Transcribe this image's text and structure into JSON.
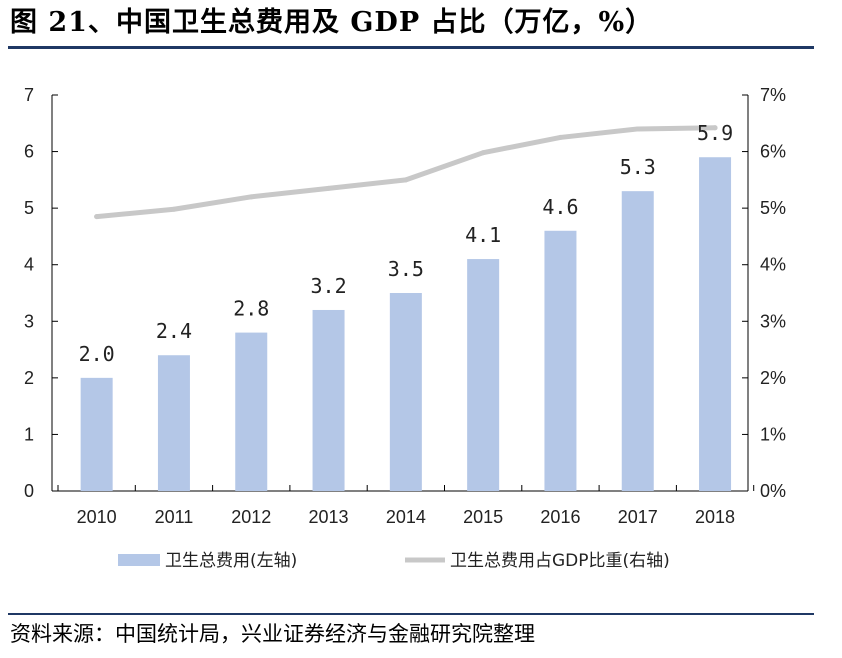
{
  "title": "图 21、中国卫生总费用及 GDP 占比（万亿，%）",
  "source": "资料来源：中国统计局，兴业证券经济与金融研究院整理",
  "colors": {
    "bar": "#b4c7e7",
    "line": "#c8c8c8",
    "rule": "#1f3864"
  },
  "chart_data": {
    "type": "bar",
    "categories": [
      "2010",
      "2011",
      "2012",
      "2013",
      "2014",
      "2015",
      "2016",
      "2017",
      "2018"
    ],
    "series": [
      {
        "name": "卫生总费用(左轴)",
        "type": "bar",
        "axis": "left",
        "values": [
          2.0,
          2.4,
          2.8,
          3.2,
          3.5,
          4.1,
          4.6,
          5.3,
          5.9
        ],
        "labels": [
          "2.0",
          "2.4",
          "2.8",
          "3.2",
          "3.5",
          "4.1",
          "4.6",
          "5.3",
          "5.9"
        ]
      },
      {
        "name": "卫生总费用占GDP比重(右轴)",
        "type": "line",
        "axis": "right",
        "values": [
          4.85,
          4.98,
          5.2,
          5.35,
          5.5,
          5.98,
          6.25,
          6.4,
          6.42
        ]
      }
    ],
    "ylim": [
      0,
      7
    ],
    "y2lim": [
      0,
      7
    ],
    "yticks": [
      "0",
      "1",
      "2",
      "3",
      "4",
      "5",
      "6",
      "7"
    ],
    "y2ticks": [
      "0%",
      "1%",
      "2%",
      "3%",
      "4%",
      "5%",
      "6%",
      "7%"
    ],
    "grid": false,
    "legend": "bottom"
  }
}
